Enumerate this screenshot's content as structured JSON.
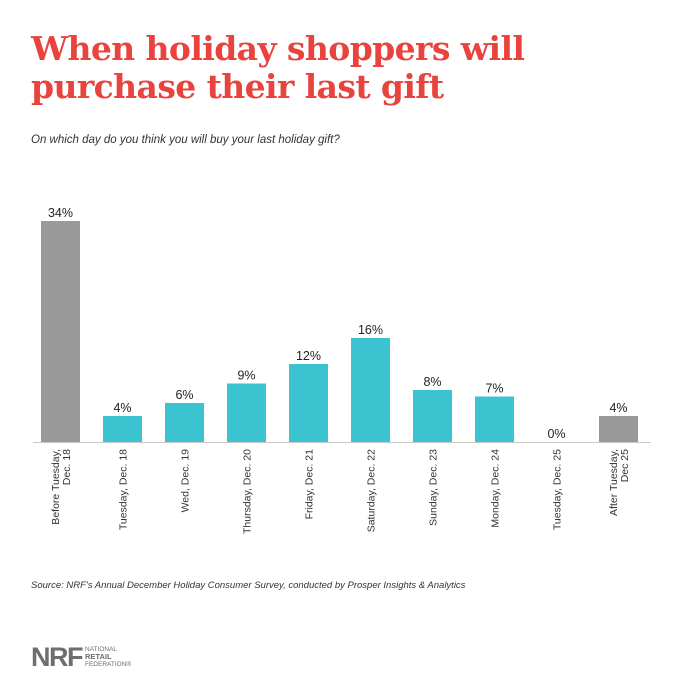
{
  "title": "When holiday shoppers will purchase their last gift",
  "subtitle": "On which day do you think you will buy your last holiday gift?",
  "source": "Source:  NRF's Annual December Holiday Consumer Survey, conducted by Prosper Insights & Analytics",
  "logo": {
    "mark": "NRF",
    "line1": "National",
    "line2": "Retail",
    "line3": "Federation®"
  },
  "colors": {
    "accent": "#e8433d",
    "gray_bar": "#9a999a",
    "teal_bar": "#3cc3d0"
  },
  "chart_data": {
    "type": "bar",
    "title": "When holiday shoppers will purchase their last gift",
    "subtitle": "On which day do you think you will buy your last holiday gift?",
    "ylim": [
      0,
      34
    ],
    "grid": false,
    "categories": [
      "Before Tuesday, Dec. 18",
      "Tuesday, Dec. 18",
      "Wed, Dec. 19",
      "Thursday, Dec. 20",
      "Friday, Dec. 21",
      "Saturday, Dec. 22",
      "Sunday, Dec. 23",
      "Monday, Dec. 24",
      "Tuesday, Dec. 25",
      "After Tuesday, Dec 25"
    ],
    "tick_lines": [
      [
        "Before Tuesday,",
        "Dec. 18"
      ],
      [
        "Tuesday, Dec. 18"
      ],
      [
        "Wed, Dec. 19"
      ],
      [
        "Thursday, Dec. 20"
      ],
      [
        "Friday, Dec. 21"
      ],
      [
        "Saturday, Dec. 22"
      ],
      [
        "Sunday, Dec. 23"
      ],
      [
        "Monday, Dec. 24"
      ],
      [
        "Tuesday, Dec. 25"
      ],
      [
        "After Tuesday,",
        "Dec 25"
      ]
    ],
    "values": [
      34,
      4,
      6,
      9,
      12,
      16,
      8,
      7,
      0,
      4
    ],
    "data_labels": [
      "34%",
      "4%",
      "6%",
      "9%",
      "12%",
      "16%",
      "8%",
      "7%",
      "0%",
      "4%"
    ],
    "bar_colors": [
      "gray",
      "teal",
      "teal",
      "teal",
      "teal",
      "teal",
      "teal",
      "teal",
      "teal",
      "gray"
    ]
  }
}
